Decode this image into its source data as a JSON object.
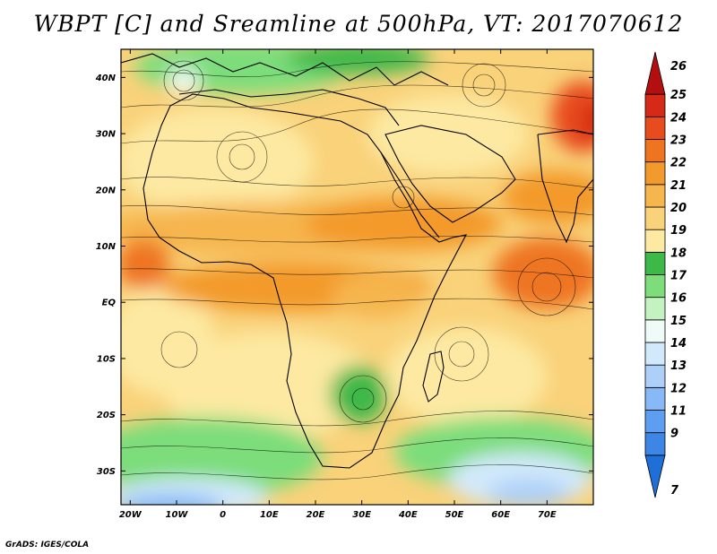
{
  "title": "WBPT [C] and Sreamline at 500hPa, VT: 2017070612",
  "credit": "GrADS: IGES/COLA",
  "map": {
    "lon_range": [
      -22,
      80
    ],
    "lat_range": [
      -36,
      45
    ],
    "x_ticks": [
      {
        "value": -20,
        "label": "20W"
      },
      {
        "value": -10,
        "label": "10W"
      },
      {
        "value": 0,
        "label": "0"
      },
      {
        "value": 10,
        "label": "10E"
      },
      {
        "value": 20,
        "label": "20E"
      },
      {
        "value": 30,
        "label": "30E"
      },
      {
        "value": 40,
        "label": "40E"
      },
      {
        "value": 50,
        "label": "50E"
      },
      {
        "value": 60,
        "label": "60E"
      },
      {
        "value": 70,
        "label": "70E"
      }
    ],
    "y_ticks": [
      {
        "value": 40,
        "label": "40N"
      },
      {
        "value": 30,
        "label": "30N"
      },
      {
        "value": 20,
        "label": "20N"
      },
      {
        "value": 10,
        "label": "10N"
      },
      {
        "value": 0,
        "label": "EQ"
      },
      {
        "value": -10,
        "label": "10S"
      },
      {
        "value": -20,
        "label": "20S"
      },
      {
        "value": -30,
        "label": "30S"
      }
    ],
    "colorbar": [
      {
        "label": "7",
        "color": "#1f6fd9"
      },
      {
        "label": "9",
        "color": "#3d86e6"
      },
      {
        "label": "11",
        "color": "#5e9ef0"
      },
      {
        "label": "12",
        "color": "#86b9f5"
      },
      {
        "label": "13",
        "color": "#aed0f8"
      },
      {
        "label": "14",
        "color": "#d2e9fb"
      },
      {
        "label": "15",
        "color": "#eefbf6"
      },
      {
        "label": "16",
        "color": "#c4f2c0"
      },
      {
        "label": "17",
        "color": "#7cdd7a"
      },
      {
        "label": "18",
        "color": "#3eb849"
      },
      {
        "label": "19",
        "color": "#fde9a2"
      },
      {
        "label": "20",
        "color": "#f9d27a"
      },
      {
        "label": "21",
        "color": "#f6b54d"
      },
      {
        "label": "22",
        "color": "#f39a2c"
      },
      {
        "label": "23",
        "color": "#ee7420"
      },
      {
        "label": "24",
        "color": "#e84c1d"
      },
      {
        "label": "25",
        "color": "#d52a17"
      },
      {
        "label": "26",
        "color": "#b40f0f"
      }
    ]
  }
}
